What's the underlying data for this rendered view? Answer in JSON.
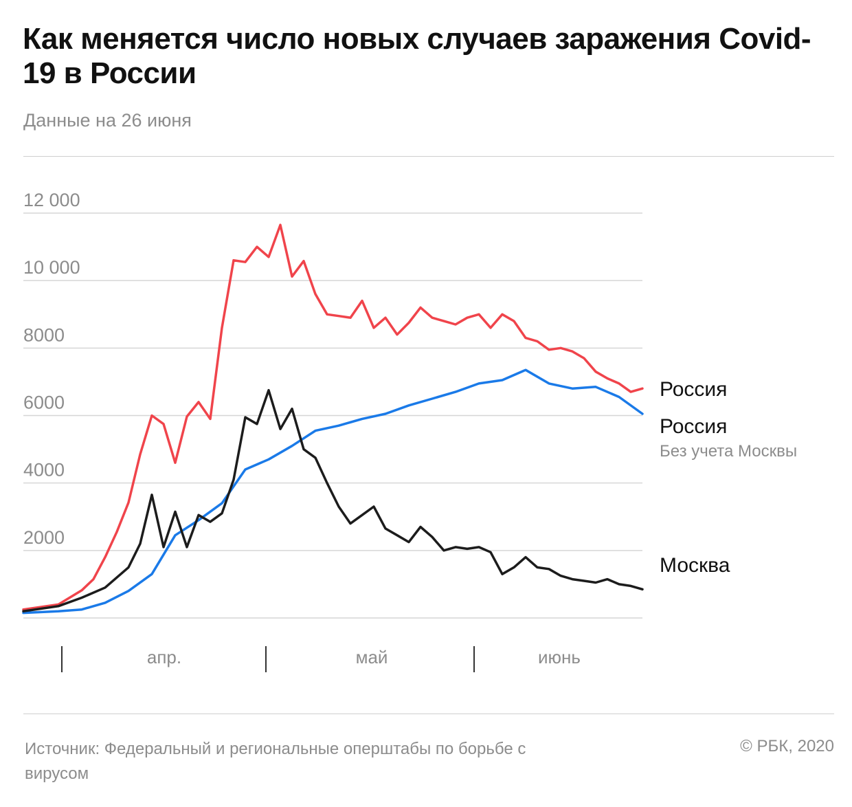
{
  "header": {
    "title": "Как меняется число новых случаев заражения Covid-19 в России",
    "subtitle": "Данные на 26 июня"
  },
  "footer": {
    "source": "Источник: Федеральный и региональные оперштабы по борьбе с вирусом",
    "copyright": "© РБК, 2020"
  },
  "colors": {
    "russia": "#f0444b",
    "russia_excl_moscow": "#1a7ae8",
    "moscow": "#1c1c1c",
    "grid": "#d6d6d6",
    "axis_text": "#8c8c8c"
  },
  "chart_data": {
    "type": "line",
    "ylim": [
      0,
      12000
    ],
    "y_ticks": [
      2000,
      4000,
      6000,
      8000,
      10000,
      12000
    ],
    "y_tick_labels": [
      "2000",
      "4000",
      "6000",
      "8000",
      "10 000",
      "12 000"
    ],
    "x_range": [
      "2020-03-12",
      "2020-06-26"
    ],
    "x_month_labels": [
      "апр.",
      "май",
      "июнь"
    ],
    "grid": true,
    "series": [
      {
        "name": "Россия",
        "color": "#f0444b",
        "x": [
          "2020-03-12",
          "2020-03-18",
          "2020-03-22",
          "2020-03-24",
          "2020-03-26",
          "2020-03-28",
          "2020-03-30",
          "2020-04-01",
          "2020-04-03",
          "2020-04-05",
          "2020-04-07",
          "2020-04-09",
          "2020-04-11",
          "2020-04-13",
          "2020-04-15",
          "2020-04-17",
          "2020-04-19",
          "2020-04-21",
          "2020-04-23",
          "2020-04-25",
          "2020-04-27",
          "2020-04-29",
          "2020-05-01",
          "2020-05-03",
          "2020-05-05",
          "2020-05-07",
          "2020-05-09",
          "2020-05-11",
          "2020-05-13",
          "2020-05-15",
          "2020-05-17",
          "2020-05-19",
          "2020-05-21",
          "2020-05-23",
          "2020-05-25",
          "2020-05-27",
          "2020-05-29",
          "2020-05-31",
          "2020-06-02",
          "2020-06-04",
          "2020-06-06",
          "2020-06-08",
          "2020-06-10",
          "2020-06-12",
          "2020-06-14",
          "2020-06-16",
          "2020-06-18",
          "2020-06-20",
          "2020-06-22",
          "2020-06-24",
          "2020-06-26"
        ],
        "values": [
          250,
          400,
          820,
          1150,
          1800,
          2550,
          3420,
          4850,
          6000,
          5750,
          4600,
          5970,
          6400,
          5900,
          8600,
          10600,
          10550,
          11000,
          10700,
          11650,
          10120,
          10580,
          9600,
          9000,
          8950,
          8900,
          9400,
          8600,
          8900,
          8400,
          8750,
          9200,
          8900,
          8800,
          8700,
          8900,
          9000,
          8600,
          9000,
          8800,
          8300,
          8200,
          7950,
          8000,
          7900,
          7700,
          7300,
          7100,
          6950,
          6700,
          6800
        ]
      },
      {
        "name": "Россия",
        "note": "Без учета Москвы",
        "color": "#1a7ae8",
        "x": [
          "2020-03-12",
          "2020-03-18",
          "2020-03-22",
          "2020-03-26",
          "2020-03-30",
          "2020-04-03",
          "2020-04-07",
          "2020-04-11",
          "2020-04-15",
          "2020-04-19",
          "2020-04-23",
          "2020-04-27",
          "2020-05-01",
          "2020-05-05",
          "2020-05-09",
          "2020-05-13",
          "2020-05-17",
          "2020-05-21",
          "2020-05-25",
          "2020-05-29",
          "2020-06-02",
          "2020-06-06",
          "2020-06-10",
          "2020-06-14",
          "2020-06-18",
          "2020-06-22",
          "2020-06-26"
        ],
        "values": [
          150,
          200,
          250,
          450,
          800,
          1300,
          2450,
          2900,
          3400,
          4400,
          4700,
          5100,
          5550,
          5700,
          5900,
          6050,
          6300,
          6500,
          6700,
          6950,
          7050,
          7350,
          6950,
          6800,
          6850,
          6550,
          6050
        ]
      },
      {
        "name": "Москва",
        "color": "#1c1c1c",
        "x": [
          "2020-03-12",
          "2020-03-18",
          "2020-03-22",
          "2020-03-26",
          "2020-03-30",
          "2020-04-01",
          "2020-04-03",
          "2020-04-05",
          "2020-04-07",
          "2020-04-09",
          "2020-04-11",
          "2020-04-13",
          "2020-04-15",
          "2020-04-17",
          "2020-04-19",
          "2020-04-21",
          "2020-04-23",
          "2020-04-25",
          "2020-04-27",
          "2020-04-29",
          "2020-05-01",
          "2020-05-03",
          "2020-05-05",
          "2020-05-07",
          "2020-05-09",
          "2020-05-11",
          "2020-05-13",
          "2020-05-15",
          "2020-05-17",
          "2020-05-19",
          "2020-05-21",
          "2020-05-23",
          "2020-05-25",
          "2020-05-27",
          "2020-05-29",
          "2020-05-31",
          "2020-06-02",
          "2020-06-04",
          "2020-06-06",
          "2020-06-08",
          "2020-06-10",
          "2020-06-12",
          "2020-06-14",
          "2020-06-16",
          "2020-06-18",
          "2020-06-20",
          "2020-06-22",
          "2020-06-24",
          "2020-06-26"
        ],
        "values": [
          200,
          350,
          600,
          900,
          1500,
          2200,
          3650,
          2100,
          3150,
          2100,
          3050,
          2850,
          3100,
          4100,
          5950,
          5750,
          6750,
          5600,
          6200,
          5000,
          4750,
          4000,
          3300,
          2800,
          3050,
          3300,
          2650,
          2450,
          2250,
          2700,
          2400,
          2000,
          2100,
          2050,
          2100,
          1950,
          1300,
          1500,
          1800,
          1500,
          1450,
          1250,
          1150,
          1100,
          1050,
          1150,
          1000,
          950,
          850
        ]
      }
    ],
    "legend_labels": [
      {
        "text": "Россия"
      },
      {
        "text": "Россия",
        "note": "Без учета Москвы"
      },
      {
        "text": "Москва"
      }
    ]
  }
}
